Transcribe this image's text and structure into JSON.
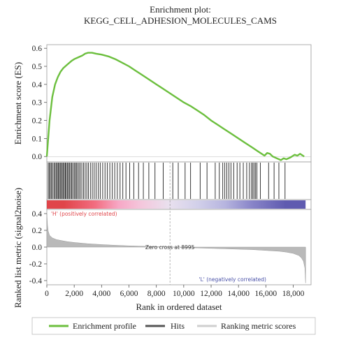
{
  "chart_data": {
    "type": "line",
    "title": "Enrichment plot:",
    "subtitle": "KEGG_CELL_ADHESION_MOLECULES_CAMS",
    "xlabel": "Rank in ordered dataset",
    "xlim": [
      0,
      19300
    ],
    "x_ticks": [
      0,
      2000,
      4000,
      6000,
      8000,
      10000,
      12000,
      14000,
      16000,
      18000
    ],
    "x_tick_labels": [
      "0",
      "2,000",
      "4,000",
      "6,000",
      "8,000",
      "10,000",
      "12,000",
      "14,000",
      "16,000",
      "18,000"
    ],
    "es_panel": {
      "ylabel": "Enrichment score (ES)",
      "ylim": [
        -0.03,
        0.62
      ],
      "y_ticks": [
        0.0,
        0.1,
        0.2,
        0.3,
        0.4,
        0.5,
        0.6
      ],
      "y_tick_labels": [
        "0.0",
        "0.1",
        "0.2",
        "0.3",
        "0.4",
        "0.5",
        "0.6"
      ],
      "series": [
        {
          "name": "Enrichment profile",
          "color": "#6cbf3e",
          "x": [
            0,
            200,
            400,
            600,
            800,
            1000,
            1200,
            1500,
            1800,
            2000,
            2300,
            2600,
            2800,
            3000,
            3300,
            3600,
            4000,
            4500,
            5000,
            5500,
            6000,
            6500,
            7000,
            7500,
            8000,
            8500,
            9000,
            9500,
            10000,
            10500,
            11000,
            11500,
            12000,
            12500,
            13000,
            13500,
            14000,
            14500,
            15000,
            15300,
            15600,
            15900,
            16100,
            16300,
            16500,
            16800,
            17100,
            17300,
            17500,
            17800,
            18100,
            18300,
            18500,
            18800
          ],
          "y": [
            0.0,
            0.2,
            0.33,
            0.4,
            0.44,
            0.47,
            0.49,
            0.51,
            0.53,
            0.54,
            0.55,
            0.56,
            0.57,
            0.575,
            0.575,
            0.57,
            0.565,
            0.555,
            0.54,
            0.52,
            0.5,
            0.475,
            0.45,
            0.425,
            0.4,
            0.375,
            0.35,
            0.325,
            0.3,
            0.28,
            0.255,
            0.23,
            0.2,
            0.175,
            0.15,
            0.125,
            0.1,
            0.075,
            0.05,
            0.035,
            0.02,
            0.005,
            0.02,
            0.015,
            0.0,
            -0.01,
            -0.02,
            -0.01,
            -0.015,
            -0.005,
            0.01,
            0.005,
            0.015,
            0.0
          ]
        }
      ]
    },
    "hits": {
      "name": "Hits",
      "color": "#222222",
      "positions": [
        100,
        180,
        260,
        340,
        420,
        520,
        600,
        680,
        760,
        830,
        900,
        980,
        1050,
        1130,
        1200,
        1280,
        1350,
        1420,
        1500,
        1580,
        1650,
        1740,
        1820,
        1900,
        2000,
        2080,
        2160,
        2250,
        2350,
        2450,
        2560,
        2680,
        2800,
        2920,
        3040,
        3180,
        3320,
        3460,
        3600,
        3760,
        3900,
        4080,
        4250,
        4420,
        4600,
        4780,
        4960,
        5150,
        5350,
        5550,
        5780,
        6050,
        6350,
        6700,
        7050,
        7450,
        7900,
        8500,
        9200,
        9600,
        10100,
        10500,
        11200,
        11700,
        12300,
        12600,
        12850,
        13000,
        13150,
        13300,
        13450,
        13650,
        13900,
        14100,
        14350,
        14600,
        14800,
        14950,
        15050,
        15150,
        15250,
        15350,
        15600,
        16200,
        16600,
        16950,
        17400
      ]
    },
    "heatmap_bar": {
      "colors": [
        "#e0454a",
        "#f26d80",
        "#f7a8c6",
        "#f4c7dc",
        "#e9e0ee",
        "#d2d0ea",
        "#b7b5df",
        "#8884c8",
        "#5f5bb0"
      ],
      "stops": [
        0,
        2500,
        4500,
        6000,
        7800,
        10000,
        12000,
        14000,
        16000,
        18900
      ]
    },
    "metric_panel": {
      "ylabel": "Ranked list metric (signal2noise)",
      "ylim": [
        -0.45,
        0.45
      ],
      "y_ticks": [
        0.4,
        0.2,
        0.0,
        -0.2,
        -0.4
      ],
      "y_tick_labels": [
        "0.4",
        "0.2",
        "0.0",
        "-0.2",
        "-0.4"
      ],
      "series": [
        {
          "name": "Ranking metric scores",
          "color": "#b9b9b9",
          "x": [
            0,
            50,
            100,
            200,
            400,
            700,
            1000,
            1500,
            2000,
            3000,
            4000,
            5000,
            6000,
            7000,
            8000,
            8995,
            10000,
            11000,
            12000,
            13000,
            14000,
            15000,
            16000,
            17000,
            17500,
            18000,
            18400,
            18600,
            18750,
            18850,
            18900
          ],
          "y": [
            0.4,
            0.26,
            0.19,
            0.14,
            0.11,
            0.09,
            0.08,
            0.065,
            0.055,
            0.04,
            0.03,
            0.022,
            0.015,
            0.01,
            0.005,
            0.0,
            -0.005,
            -0.01,
            -0.015,
            -0.02,
            -0.025,
            -0.03,
            -0.04,
            -0.05,
            -0.06,
            -0.075,
            -0.1,
            -0.13,
            -0.17,
            -0.25,
            -0.43
          ]
        }
      ],
      "annotations": {
        "positive": "'H' (positively correlated)",
        "negative": "'L' (negatively correlated)",
        "zero_cross": "Zero cross at 8995",
        "zero_cross_x": 8995
      }
    },
    "legend": {
      "placement": "bottom",
      "items": [
        {
          "label": "Enrichment profile",
          "color": "#6cbf3e"
        },
        {
          "label": "Hits",
          "color": "#555555"
        },
        {
          "label": "Ranking metric scores",
          "color": "#cfcfcf"
        }
      ]
    }
  }
}
